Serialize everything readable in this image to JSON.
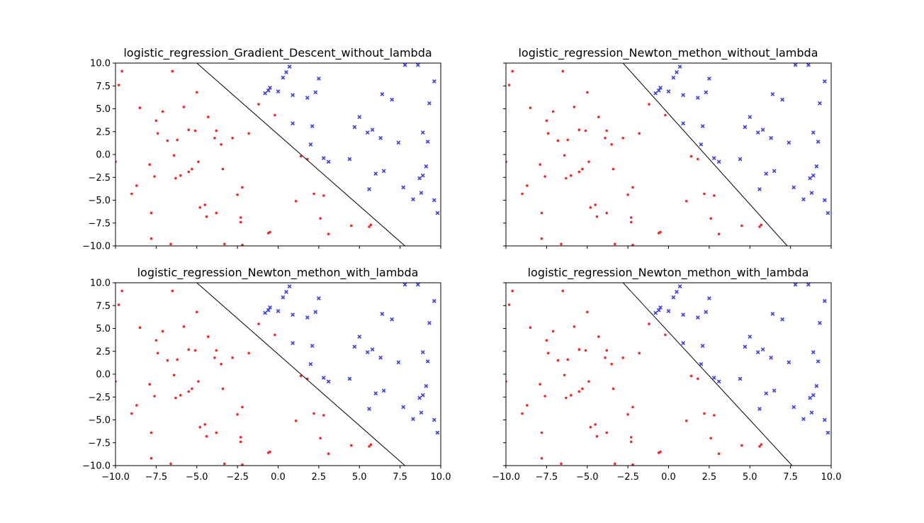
{
  "figure": {
    "colors": {
      "class0": "#ff2020",
      "class1": "#3a3af0",
      "boundary": "#000000"
    }
  },
  "chart_data": [
    {
      "type": "scatter",
      "title": "logistic_regression_Gradient_Descent_without_lambda",
      "xlim": [
        -10,
        10
      ],
      "ylim": [
        -10,
        10
      ],
      "xticks": [
        "−10.0",
        "−7.5",
        "−5.0",
        "−2.5",
        "0.0",
        "2.5",
        "5.0",
        "7.5",
        "10.0"
      ],
      "yticks": [
        "10.0",
        "7.5",
        "5.0",
        "2.5",
        "0.0",
        "−2.5",
        "−5.0",
        "−7.5",
        "−10.0"
      ],
      "show_xtick_labels": false,
      "show_ytick_labels": true,
      "boundary": [
        [
          -5.0,
          10.0
        ],
        [
          7.8,
          -10.0
        ]
      ]
    },
    {
      "type": "scatter",
      "title": "logistic_regression_Newton_methon_without_lambda",
      "xlim": [
        -10,
        10
      ],
      "ylim": [
        -10,
        10
      ],
      "xticks": [
        "−10.0",
        "−7.5",
        "−5.0",
        "−2.5",
        "0.0",
        "2.5",
        "5.0",
        "7.5",
        "10.0"
      ],
      "yticks": [
        "10.0",
        "7.5",
        "5.0",
        "2.5",
        "0.0",
        "−2.5",
        "−5.0",
        "−7.5",
        "−10.0"
      ],
      "show_xtick_labels": false,
      "show_ytick_labels": false,
      "boundary": [
        [
          -2.8,
          10.0
        ],
        [
          7.3,
          -10.0
        ]
      ]
    },
    {
      "type": "scatter",
      "title": "logistic_regression_Newton_methon_with_lambda",
      "xlim": [
        -10,
        10
      ],
      "ylim": [
        -10,
        10
      ],
      "xticks": [
        "−10.0",
        "−7.5",
        "−5.0",
        "−2.5",
        "0.0",
        "2.5",
        "5.0",
        "7.5",
        "10.0"
      ],
      "yticks": [
        "10.0",
        "7.5",
        "5.0",
        "2.5",
        "0.0",
        "−2.5",
        "−5.0",
        "−7.5",
        "−10.0"
      ],
      "show_xtick_labels": true,
      "show_ytick_labels": true,
      "boundary": [
        [
          -5.0,
          10.0
        ],
        [
          7.8,
          -10.0
        ]
      ]
    },
    {
      "type": "scatter",
      "title": "logistic_regression_Newton_methon_with_lambda",
      "xlim": [
        -10,
        10
      ],
      "ylim": [
        -10,
        10
      ],
      "xticks": [
        "−10.0",
        "−7.5",
        "−5.0",
        "−2.5",
        "0.0",
        "2.5",
        "5.0",
        "7.5",
        "10.0"
      ],
      "yticks": [
        "10.0",
        "7.5",
        "5.0",
        "2.5",
        "0.0",
        "−2.5",
        "−5.0",
        "−7.5",
        "−10.0"
      ],
      "show_xtick_labels": true,
      "show_ytick_labels": false,
      "boundary": [
        [
          -2.8,
          10.0
        ],
        [
          7.6,
          -10.0
        ]
      ]
    }
  ],
  "points": {
    "class0": [
      [
        -9.6,
        9.1
      ],
      [
        -9.8,
        7.6
      ],
      [
        -10.0,
        -0.8
      ],
      [
        -9.0,
        -4.3
      ],
      [
        -8.7,
        -3.4
      ],
      [
        -8.5,
        5.1
      ],
      [
        -7.9,
        -1.1
      ],
      [
        -7.8,
        -6.4
      ],
      [
        -7.8,
        -9.2
      ],
      [
        -7.6,
        -2.4
      ],
      [
        -7.5,
        3.7
      ],
      [
        -7.4,
        2.3
      ],
      [
        -7.1,
        4.7
      ],
      [
        -6.8,
        1.5
      ],
      [
        -6.6,
        -9.8
      ],
      [
        -6.5,
        9.1
      ],
      [
        -6.4,
        -0.1
      ],
      [
        -6.3,
        -2.6
      ],
      [
        -6.2,
        1.6
      ],
      [
        -6.0,
        -2.3
      ],
      [
        -5.8,
        5.2
      ],
      [
        -5.5,
        -1.9
      ],
      [
        -5.5,
        2.7
      ],
      [
        -5.3,
        -1.6
      ],
      [
        -5.1,
        2.6
      ],
      [
        -5.0,
        6.8
      ],
      [
        -4.9,
        -0.8
      ],
      [
        -4.8,
        -5.8
      ],
      [
        -4.5,
        -5.5
      ],
      [
        -4.4,
        -6.8
      ],
      [
        -4.3,
        4.1
      ],
      [
        -3.9,
        1.8
      ],
      [
        -3.8,
        2.6
      ],
      [
        -3.8,
        -6.4
      ],
      [
        -3.5,
        1.1
      ],
      [
        -3.4,
        -1.6
      ],
      [
        -3.3,
        -9.8
      ],
      [
        -2.8,
        1.8
      ],
      [
        -2.5,
        -4.4
      ],
      [
        -2.3,
        -6.9
      ],
      [
        -2.3,
        -7.4
      ],
      [
        -2.2,
        -3.6
      ],
      [
        -2.2,
        -9.9
      ],
      [
        -1.8,
        2.3
      ],
      [
        -1.2,
        5.5
      ],
      [
        -0.6,
        -8.6
      ],
      [
        -0.5,
        -8.5
      ],
      [
        -0.2,
        4.3
      ],
      [
        1.1,
        -5.1
      ],
      [
        1.4,
        -0.2
      ],
      [
        1.8,
        -0.5
      ],
      [
        2.2,
        -4.3
      ],
      [
        2.6,
        -7.0
      ],
      [
        2.8,
        -4.5
      ],
      [
        3.1,
        -8.7
      ],
      [
        4.5,
        -7.8
      ],
      [
        5.6,
        -7.9
      ],
      [
        5.7,
        -7.7
      ]
    ],
    "class1": [
      [
        -0.8,
        6.7
      ],
      [
        -0.6,
        7.0
      ],
      [
        -0.5,
        7.3
      ],
      [
        0.0,
        6.9
      ],
      [
        0.3,
        8.4
      ],
      [
        0.5,
        9.0
      ],
      [
        0.7,
        9.6
      ],
      [
        0.9,
        3.4
      ],
      [
        0.9,
        6.5
      ],
      [
        1.8,
        6.2
      ],
      [
        2.0,
        1.1
      ],
      [
        2.1,
        3.1
      ],
      [
        2.3,
        6.8
      ],
      [
        2.5,
        8.3
      ],
      [
        2.8,
        -0.4
      ],
      [
        3.1,
        -0.8
      ],
      [
        4.4,
        -0.5
      ],
      [
        4.7,
        3.0
      ],
      [
        5.0,
        4.1
      ],
      [
        5.5,
        2.4
      ],
      [
        5.6,
        -3.8
      ],
      [
        5.8,
        2.7
      ],
      [
        6.0,
        -2.1
      ],
      [
        6.3,
        1.8
      ],
      [
        6.4,
        6.6
      ],
      [
        6.5,
        -1.8
      ],
      [
        7.0,
        6.0
      ],
      [
        7.4,
        1.3
      ],
      [
        7.7,
        -3.6
      ],
      [
        7.8,
        9.8
      ],
      [
        8.3,
        -4.9
      ],
      [
        8.6,
        9.8
      ],
      [
        8.7,
        -2.6
      ],
      [
        8.8,
        -4.2
      ],
      [
        8.9,
        -2.3
      ],
      [
        8.9,
        2.4
      ],
      [
        9.1,
        -1.3
      ],
      [
        9.2,
        1.4
      ],
      [
        9.3,
        5.6
      ],
      [
        9.6,
        8.0
      ],
      [
        9.6,
        -5.0
      ],
      [
        9.8,
        -6.4
      ]
    ]
  }
}
